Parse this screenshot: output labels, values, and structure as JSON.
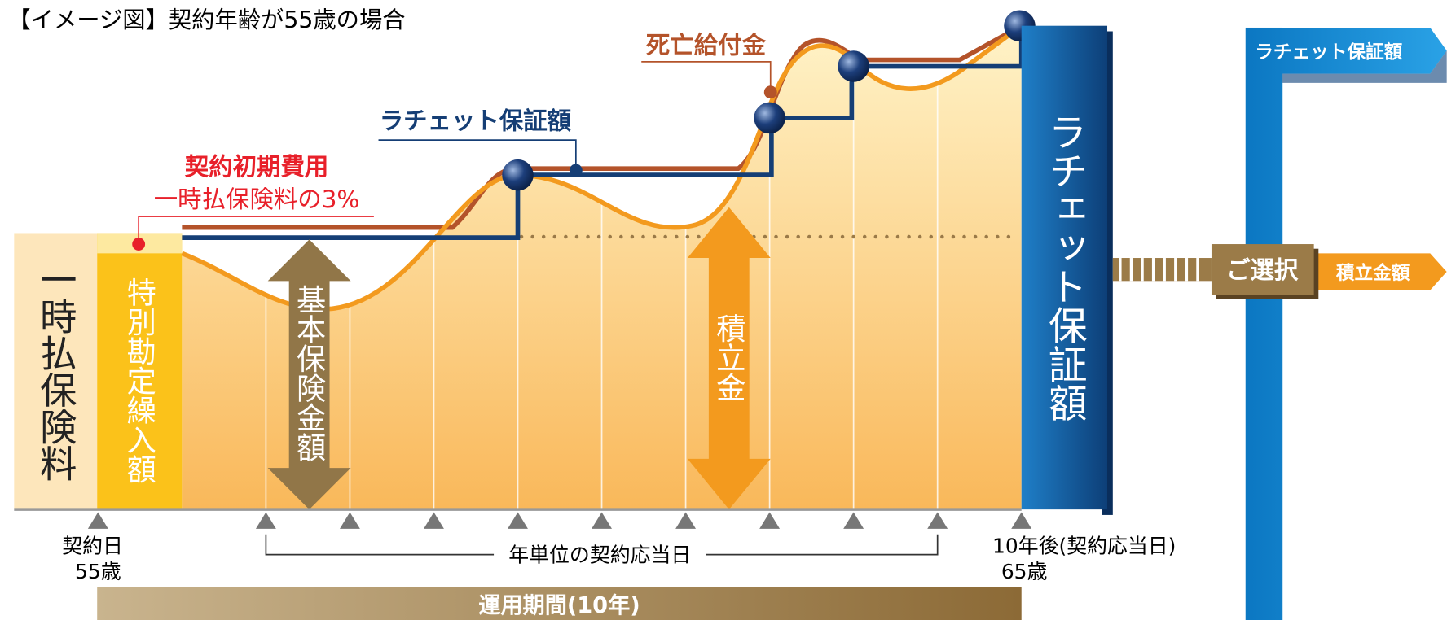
{
  "header": {
    "title": "【イメージ図】契約年齢が55歳の場合"
  },
  "labels": {
    "death_benefit": "死亡給付金",
    "ratchet_callout": "ラチェット保証額",
    "initial_cost": "契約初期費用",
    "initial_cost_rate": "一時払保険料の3%",
    "premium": "一時払保険料",
    "special_account": "特別勘定繰入額",
    "basic_amount": "基本保険金額",
    "reserve": "積立金",
    "ratchet_block": "ラチェット保証額"
  },
  "timeline": {
    "start_label": "契約日",
    "start_age": "55歳",
    "anniversary": "年単位の契約応当日",
    "end_label": "10年後(契約応当日)",
    "end_age": "65歳",
    "period": "運用期間(10年)"
  },
  "choice": {
    "ratchet": "ラチェット保証額",
    "select": "ご選択",
    "reserve_amount": "積立金額"
  }
}
